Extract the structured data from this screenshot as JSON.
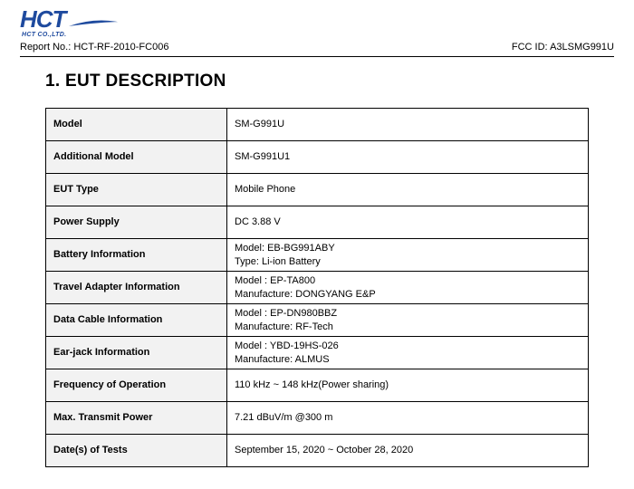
{
  "logo": {
    "text": "HCT",
    "subtitle": "HCT CO.,LTD.",
    "color": "#1e4a9e"
  },
  "header": {
    "report_no_label": "Report No.:",
    "report_no": "HCT-RF-2010-FC006",
    "fcc_id_label": "FCC ID:",
    "fcc_id": "A3LSMG991U"
  },
  "section_title": "1. EUT DESCRIPTION",
  "table": {
    "rows": [
      {
        "label": "Model",
        "value": "SM-G991U"
      },
      {
        "label": "Additional Model",
        "value": "SM-G991U1"
      },
      {
        "label": "EUT Type",
        "value": "Mobile Phone"
      },
      {
        "label": "Power Supply",
        "value": "DC 3.88 V"
      },
      {
        "label": "Battery Information",
        "value": "Model: EB-BG991ABY\nType: Li-ion Battery"
      },
      {
        "label": "Travel Adapter Information",
        "value": "Model : EP-TA800\nManufacture: DONGYANG E&P"
      },
      {
        "label": "Data Cable Information",
        "value": "Model : EP-DN980BBZ\nManufacture: RF-Tech"
      },
      {
        "label": "Ear-jack Information",
        "value": "Model : YBD-19HS-026\nManufacture: ALMUS"
      },
      {
        "label": "Frequency of Operation",
        "value": "110 kHz ~ 148 kHz(Power sharing)"
      },
      {
        "label": "Max. Transmit Power",
        "value": "7.21 dBuV/m @300 m"
      },
      {
        "label": "Date(s) of Tests",
        "value": "September 15, 2020 ~ October 28, 2020"
      }
    ],
    "header_bg": "#f2f2f2",
    "border_color": "#000000",
    "label_col_width": 200
  },
  "fonts": {
    "body_size": 11,
    "title_size": 19,
    "logo_size": 26
  }
}
